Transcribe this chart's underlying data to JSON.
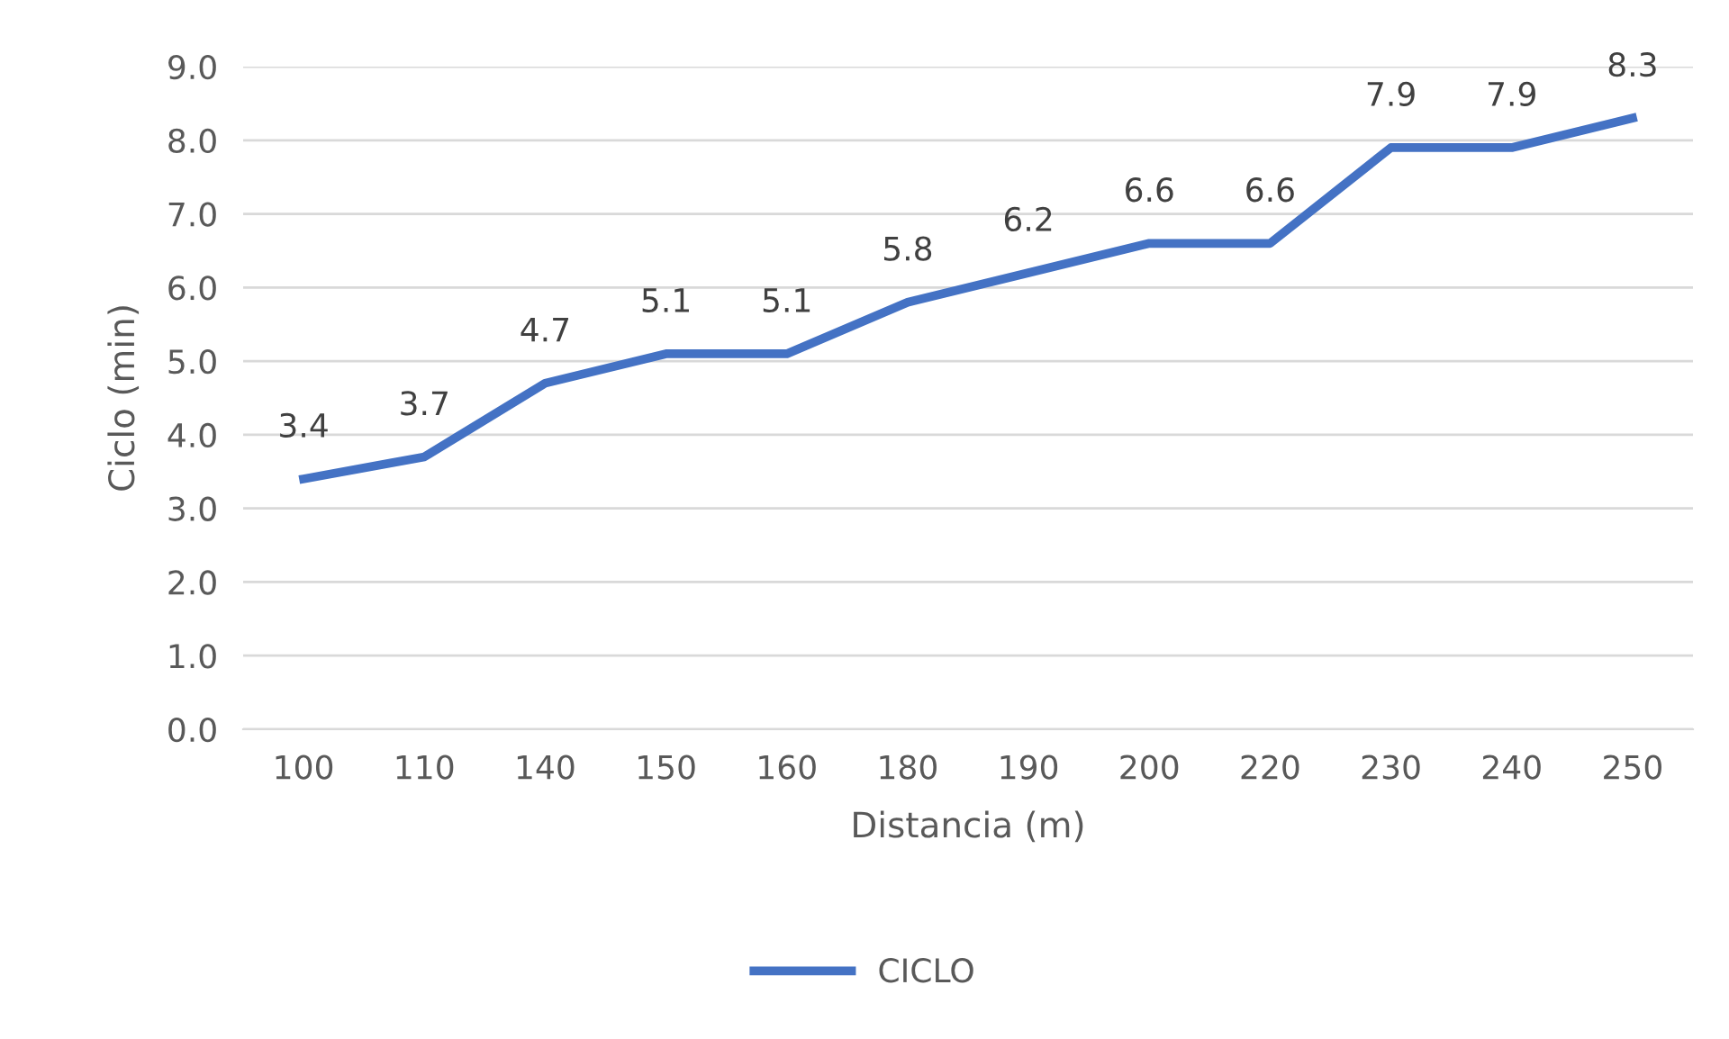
{
  "chart_data": {
    "type": "line",
    "xlabel": "Distancia (m)",
    "ylabel": "Ciclo (min)",
    "categories": [
      "100",
      "110",
      "140",
      "150",
      "160",
      "180",
      "190",
      "200",
      "220",
      "230",
      "240",
      "250"
    ],
    "series": [
      {
        "name": "CICLO",
        "color": "#4472c4",
        "values": [
          3.4,
          3.7,
          4.7,
          5.1,
          5.1,
          5.8,
          6.2,
          6.6,
          6.6,
          7.9,
          7.9,
          8.3
        ]
      }
    ],
    "ylim": [
      0,
      9
    ],
    "yticks": [
      {
        "value": 0,
        "label": "0.0"
      },
      {
        "value": 1,
        "label": "1.0"
      },
      {
        "value": 2,
        "label": "2.0"
      },
      {
        "value": 3,
        "label": "3.0"
      },
      {
        "value": 4,
        "label": "4.0"
      },
      {
        "value": 5,
        "label": "5.0"
      },
      {
        "value": 6,
        "label": "6.0"
      },
      {
        "value": 7,
        "label": "7.0"
      },
      {
        "value": 8,
        "label": "8.0"
      },
      {
        "value": 9,
        "label": "9.0"
      }
    ],
    "grid": "y",
    "legend": "bottom",
    "data_labels": true,
    "marker": "none",
    "line_style": "solid"
  }
}
